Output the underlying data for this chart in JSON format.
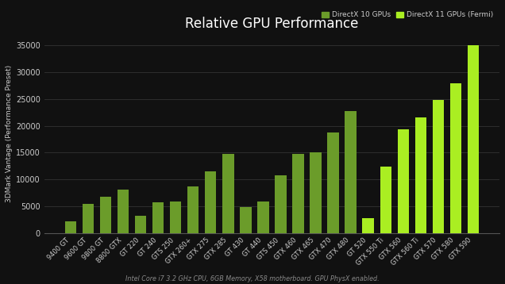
{
  "title": "Relative GPU Performance",
  "subtitle": "Intel Core i7 3.2 GHz CPU, 6GB Memory, X58 motherboard. GPU PhysX enabled.",
  "ylabel": "3DMark Vantage (Performance Preset)",
  "background_color": "#111111",
  "text_color": "#cccccc",
  "grid_color": "#333333",
  "categories": [
    "9400 GT",
    "9600 GT",
    "9800 GT",
    "8800 GTX",
    "GT 220",
    "GT 240",
    "GTS 250",
    "GTX 260+",
    "GTX 275",
    "GTX 285",
    "GT 430",
    "GT 440",
    "GTS 450",
    "GTX 460",
    "GTX 465",
    "GTX 470",
    "GTX 480",
    "GT 520",
    "GTX 550 Ti",
    "GTX 560",
    "GTX 560 Ti",
    "GTX 570",
    "GTX 580",
    "GTX 590"
  ],
  "values": [
    2100,
    5400,
    6800,
    8100,
    3200,
    5700,
    5900,
    8600,
    11500,
    14700,
    4800,
    5900,
    10700,
    14800,
    15100,
    18700,
    22700,
    2700,
    12400,
    19300,
    21500,
    24800,
    27900,
    35000
  ],
  "dx10_color": "#6b9c2a",
  "dx11_color": "#aaee22",
  "dx10_indices": [
    0,
    1,
    2,
    3,
    4,
    5,
    6,
    7,
    8,
    9,
    10,
    11,
    12,
    13,
    14,
    15,
    16
  ],
  "dx11_indices": [
    17,
    18,
    19,
    20,
    21,
    22,
    23
  ],
  "legend_dx10_label": "DirectX 10 GPUs",
  "legend_dx11_label": "DirectX 11 GPUs (Fermi)",
  "ylim": [
    0,
    37000
  ],
  "yticks": [
    0,
    5000,
    10000,
    15000,
    20000,
    25000,
    30000,
    35000
  ]
}
